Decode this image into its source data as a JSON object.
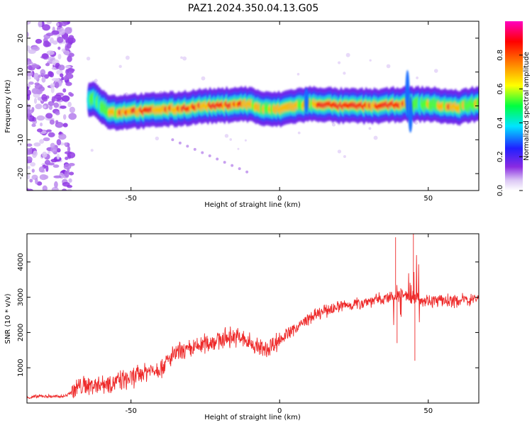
{
  "title": "PAZ1.2024.350.04.13.G05",
  "chart_data": [
    {
      "type": "heatmap",
      "xlabel": "Height of straight line (km)",
      "ylabel": "Frequency (Hz)",
      "xlim": [
        -85,
        67
      ],
      "ylim": [
        -25,
        25
      ],
      "xticks": [
        -50,
        0,
        50
      ],
      "yticks": [
        -20,
        -10,
        0,
        10,
        20
      ],
      "colorbar": {
        "label": "Normalized spectral amplitude",
        "range": [
          0,
          1
        ],
        "ticks": [
          "0.0",
          "0.2",
          "0.4",
          "0.6",
          "0.8"
        ],
        "colors": [
          "#ffffff",
          "#dcc8f5",
          "#8a2be2",
          "#2020ff",
          "#00e5ff",
          "#00ff40",
          "#ffff00",
          "#ff8000",
          "#ff0000",
          "#ff00c0"
        ]
      },
      "ridge": {
        "x": [
          -62,
          -58,
          -55,
          -50,
          -45,
          -40,
          -35,
          -30,
          -25,
          -20,
          -15,
          -10,
          -5,
          0,
          5,
          10,
          15,
          20,
          25,
          30,
          35,
          40,
          45,
          50,
          55,
          60,
          65
        ],
        "y": [
          2,
          -1.5,
          -2,
          -1.5,
          -1.5,
          -1,
          -1,
          -0.5,
          0,
          0,
          0.5,
          0.5,
          -1,
          -1,
          0,
          0.5,
          0.5,
          0,
          0,
          0,
          0,
          0.5,
          0.5,
          0.5,
          0,
          -0.5,
          0.5
        ],
        "amplitude": [
          0.5,
          0.6,
          0.7,
          0.8,
          0.85,
          0.75,
          0.8,
          0.85,
          0.7,
          0.9,
          0.8,
          0.75,
          0.6,
          0.7,
          0.75,
          0.6,
          0.9,
          0.95,
          0.95,
          0.85,
          0.9,
          0.9,
          0.5,
          0.6,
          0.75,
          0.7,
          0.6
        ]
      }
    },
    {
      "type": "line",
      "xlabel": "Height of straight line (km)",
      "ylabel": "SNR (10 * v/v)",
      "xlim": [
        -85,
        67
      ],
      "ylim": [
        0,
        4800
      ],
      "xticks": [
        -50,
        0,
        50
      ],
      "yticks": [
        1000,
        2000,
        3000,
        4000
      ],
      "color": "#ee2a2a",
      "x": [
        -85,
        -80,
        -75,
        -72,
        -70,
        -68,
        -65,
        -60,
        -55,
        -50,
        -45,
        -40,
        -35,
        -30,
        -25,
        -20,
        -15,
        -10,
        -5,
        0,
        5,
        10,
        15,
        20,
        25,
        30,
        35,
        40,
        45,
        50,
        55,
        60,
        65,
        67
      ],
      "y": [
        150,
        200,
        180,
        200,
        320,
        450,
        500,
        550,
        600,
        700,
        900,
        1000,
        1400,
        1500,
        1700,
        1800,
        1900,
        1700,
        1500,
        1800,
        2100,
        2400,
        2600,
        2750,
        2800,
        2900,
        2950,
        3050,
        3000,
        2900,
        2900,
        2900,
        2950,
        3000
      ],
      "spikes": [
        {
          "x": 39,
          "y": 4700
        },
        {
          "x": 39.5,
          "y": 1700
        },
        {
          "x": 45,
          "y": 4800
        },
        {
          "x": 45.5,
          "y": 1200
        }
      ]
    }
  ]
}
